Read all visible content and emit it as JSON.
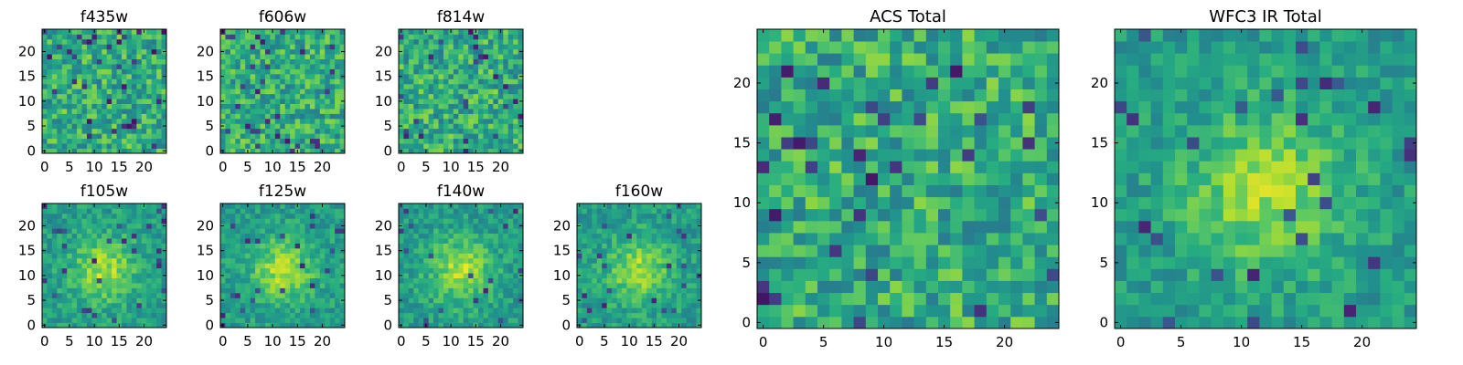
{
  "chart_data": [
    {
      "type": "heatmap",
      "title": "f435w",
      "xlabel": "",
      "ylabel": "",
      "xlim": [
        0,
        24
      ],
      "ylim": [
        0,
        24
      ],
      "xticks": [
        "0",
        "5",
        "10",
        "15",
        "20"
      ],
      "yticks": [
        "0",
        "5",
        "10",
        "15",
        "20"
      ],
      "colormap": "viridis"
    },
    {
      "type": "heatmap",
      "title": "f606w",
      "xlabel": "",
      "ylabel": "",
      "xlim": [
        0,
        24
      ],
      "ylim": [
        0,
        24
      ],
      "xticks": [
        "0",
        "5",
        "10",
        "15",
        "20"
      ],
      "yticks": [
        "0",
        "5",
        "10",
        "15",
        "20"
      ],
      "colormap": "viridis"
    },
    {
      "type": "heatmap",
      "title": "f814w",
      "xlabel": "",
      "ylabel": "",
      "xlim": [
        0,
        24
      ],
      "ylim": [
        0,
        24
      ],
      "xticks": [
        "0",
        "5",
        "10",
        "15",
        "20"
      ],
      "yticks": [
        "0",
        "5",
        "10",
        "15",
        "20"
      ],
      "colormap": "viridis"
    },
    {
      "type": "heatmap",
      "title": "f105w",
      "xlabel": "",
      "ylabel": "",
      "xlim": [
        0,
        24
      ],
      "ylim": [
        0,
        24
      ],
      "xticks": [
        "0",
        "5",
        "10",
        "15",
        "20"
      ],
      "yticks": [
        "0",
        "5",
        "10",
        "15",
        "20"
      ],
      "colormap": "viridis"
    },
    {
      "type": "heatmap",
      "title": "f125w",
      "xlabel": "",
      "ylabel": "",
      "xlim": [
        0,
        24
      ],
      "ylim": [
        0,
        24
      ],
      "xticks": [
        "0",
        "5",
        "10",
        "15",
        "20"
      ],
      "yticks": [
        "0",
        "5",
        "10",
        "15",
        "20"
      ],
      "colormap": "viridis"
    },
    {
      "type": "heatmap",
      "title": "f140w",
      "xlabel": "",
      "ylabel": "",
      "xlim": [
        0,
        24
      ],
      "ylim": [
        0,
        24
      ],
      "xticks": [
        "0",
        "5",
        "10",
        "15",
        "20"
      ],
      "yticks": [
        "0",
        "5",
        "10",
        "15",
        "20"
      ],
      "colormap": "viridis"
    },
    {
      "type": "heatmap",
      "title": "f160w",
      "xlabel": "",
      "ylabel": "",
      "xlim": [
        0,
        24
      ],
      "ylim": [
        0,
        24
      ],
      "xticks": [
        "0",
        "5",
        "10",
        "15",
        "20"
      ],
      "yticks": [
        "0",
        "5",
        "10",
        "15",
        "20"
      ],
      "colormap": "viridis"
    },
    {
      "type": "heatmap",
      "title": "ACS Total",
      "xlabel": "",
      "ylabel": "",
      "xlim": [
        0,
        24
      ],
      "ylim": [
        0,
        24
      ],
      "xticks": [
        "0",
        "5",
        "10",
        "15",
        "20"
      ],
      "yticks": [
        "0",
        "5",
        "10",
        "15",
        "20"
      ],
      "colormap": "viridis"
    },
    {
      "type": "heatmap",
      "title": "WFC3 IR Total",
      "xlabel": "",
      "ylabel": "",
      "xlim": [
        0,
        24
      ],
      "ylim": [
        0,
        24
      ],
      "xticks": [
        "0",
        "5",
        "10",
        "15",
        "20"
      ],
      "yticks": [
        "0",
        "5",
        "10",
        "15",
        "20"
      ],
      "colormap": "viridis"
    }
  ]
}
